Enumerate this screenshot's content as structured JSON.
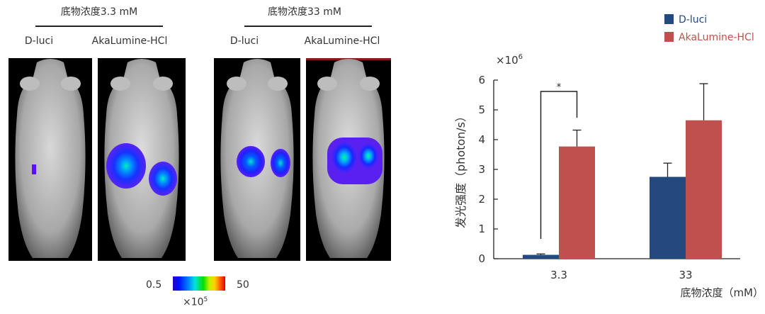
{
  "figure": {
    "groups": [
      {
        "header": "底物浓度3.3 mM",
        "labels": [
          "D-luci",
          "AkaLumine-HCl"
        ]
      },
      {
        "header": "底物浓度33 mM",
        "labels": [
          "D-luci",
          "AkaLumine-HCl"
        ]
      }
    ],
    "colorbar": {
      "min": "0.5",
      "max": "50",
      "unit": "×10",
      "unit_exp": "5"
    }
  },
  "chart_data": {
    "type": "bar",
    "categories": [
      "3.3",
      "33"
    ],
    "series": [
      {
        "name": "D-luci",
        "values": [
          0.13,
          2.75
        ],
        "errors": [
          0.03,
          0.46
        ],
        "color": "#24497f"
      },
      {
        "name": "AkaLumine-HCl",
        "values": [
          3.77,
          4.65
        ],
        "errors": [
          0.55,
          1.23
        ],
        "color": "#c0504d"
      }
    ],
    "xlabel": "底物浓度（mM）",
    "ylabel": "发光强度（photon/s）",
    "y_multiplier": "×10",
    "y_multiplier_exp": "6",
    "ylim": [
      0,
      6
    ],
    "yticks": [
      "0",
      "1",
      "2",
      "3",
      "4",
      "5",
      "6"
    ],
    "significance": {
      "label": "*",
      "between": "3.3"
    },
    "legend_position": "top-right",
    "grid": false
  }
}
